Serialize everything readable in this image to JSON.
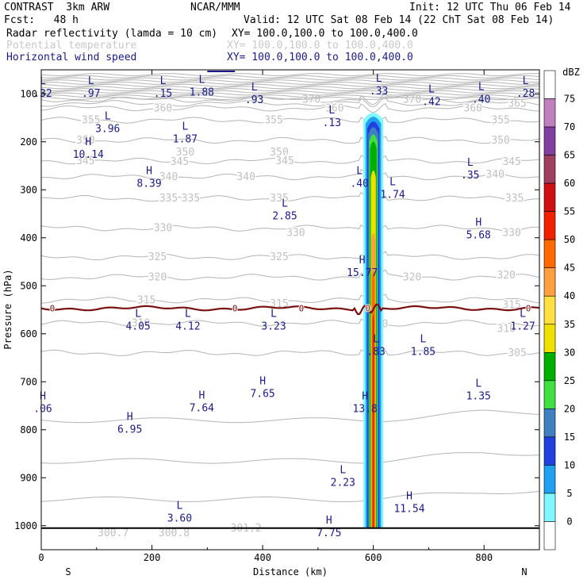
{
  "header": {
    "model": "CONTRAST  3km ARW",
    "org": "NCAR/MMM",
    "init": "Init: 12 UTC Thu 06 Feb 14",
    "fcst": "Fcst:   48 h",
    "valid": "Valid: 12 UTC Sat 08 Feb 14 (22 ChT Sat 08 Feb 14)",
    "fields": [
      {
        "name": "Radar reflectivity (lamda = 10 cm)",
        "xy": "XY= 100.0,100.0 to 100.0,400.0",
        "color": "#000000"
      },
      {
        "name": "Potential temperature",
        "xy": "XY= 100.0,100.0 to 100.0,400.0",
        "color": "#c8c8c8"
      },
      {
        "name": "Horizontal wind speed",
        "xy": "XY= 100.0,100.0 to 100.0,400.0",
        "color": "#1a1a8c"
      }
    ]
  },
  "chart_data": {
    "type": "cross-section",
    "xlabel": "Distance (km)",
    "ylabel": "Pressure (hPa)",
    "xlim": [
      0,
      900
    ],
    "ylim": [
      1050,
      50
    ],
    "x_ticks": [
      "0",
      "200",
      "400",
      "600",
      "800"
    ],
    "x_tick_values": [
      0,
      200,
      400,
      600,
      800
    ],
    "y_ticks": [
      "100",
      "200",
      "300",
      "400",
      "500",
      "600",
      "700",
      "800",
      "900",
      "1000"
    ],
    "y_tick_values": [
      100,
      200,
      300,
      400,
      500,
      600,
      700,
      800,
      900,
      1000
    ],
    "end_labels": {
      "left": "S",
      "right": "N"
    },
    "colorbar": {
      "unit": "dBZ",
      "levels": [
        "75",
        "70",
        "65",
        "60",
        "55",
        "50",
        "45",
        "40",
        "35",
        "30",
        "25",
        "20",
        "15",
        "10",
        "5",
        "0"
      ],
      "colors": [
        "#ffffff",
        "#c080c0",
        "#8040a0",
        "#a04060",
        "#d01010",
        "#f02000",
        "#ff6a00",
        "#ffa040",
        "#ffe040",
        "#f0e000",
        "#00b000",
        "#40e040",
        "#4080c0",
        "#2040e0",
        "#20a0f0",
        "#80f8ff",
        "#ffffff"
      ]
    },
    "theta_contours": [
      {
        "label": "370",
        "p": 112,
        "label_pos": [
          [
            670,
            112
          ],
          [
            488,
            112
          ]
        ]
      },
      {
        "label": "365",
        "p": 120,
        "label_pos": [
          [
            860,
            120
          ]
        ]
      },
      {
        "label": "360",
        "p": 130,
        "label_pos": [
          [
            220,
            130
          ],
          [
            530,
            130
          ],
          [
            780,
            130
          ]
        ]
      },
      {
        "label": "355",
        "p": 155,
        "label_pos": [
          [
            90,
            155
          ],
          [
            420,
            155
          ],
          [
            830,
            155
          ]
        ]
      },
      {
        "label": "350",
        "p": 197,
        "label_pos": [
          [
            80,
            197
          ],
          [
            260,
            222
          ],
          [
            430,
            222
          ],
          [
            830,
            197
          ]
        ]
      },
      {
        "label": "345",
        "p": 240,
        "label_pos": [
          [
            80,
            240
          ],
          [
            250,
            242
          ],
          [
            440,
            240
          ],
          [
            850,
            242
          ]
        ]
      },
      {
        "label": "340",
        "p": 273,
        "label_pos": [
          [
            230,
            273
          ],
          [
            370,
            273
          ],
          [
            820,
            268
          ]
        ]
      },
      {
        "label": "335",
        "p": 318,
        "label_pos": [
          [
            230,
            318
          ],
          [
            270,
            318
          ],
          [
            430,
            318
          ],
          [
            855,
            318
          ]
        ]
      },
      {
        "label": "330",
        "p": 380,
        "label_pos": [
          [
            220,
            380
          ],
          [
            460,
            390
          ],
          [
            850,
            390
          ]
        ]
      },
      {
        "label": "325",
        "p": 440,
        "label_pos": [
          [
            210,
            440
          ],
          [
            430,
            440
          ]
        ]
      },
      {
        "label": "320",
        "p": 482,
        "label_pos": [
          [
            210,
            482
          ],
          [
            670,
            482
          ],
          [
            840,
            478
          ]
        ]
      },
      {
        "label": "315",
        "p": 530,
        "label_pos": [
          [
            190,
            530
          ],
          [
            430,
            538
          ],
          [
            850,
            540
          ]
        ]
      },
      {
        "label": "310",
        "p": 578,
        "label_pos": [
          [
            180,
            578
          ],
          [
            610,
            580
          ],
          [
            840,
            590
          ]
        ]
      },
      {
        "label": "305",
        "p": 640,
        "label_pos": [
          [
            860,
            640
          ]
        ]
      }
    ],
    "theta_surface_labels": [
      {
        "label": "300.7",
        "x": 130,
        "p": 1015
      },
      {
        "label": "300.8",
        "x": 240,
        "p": 1015
      },
      {
        "label": "301.2",
        "x": 370,
        "p": 1005
      }
    ],
    "zero_isotherm": {
      "label": "0",
      "p": 547
    },
    "wind_extrema": [
      {
        "type": "L",
        "value": ".32",
        "x": -2,
        "p": 95
      },
      {
        "type": "L",
        "value": ".97",
        "x": 90,
        "p": 95
      },
      {
        "type": "L",
        "value": ".15",
        "x": 220,
        "p": 95
      },
      {
        "type": "L",
        "value": "1.88",
        "x": 290,
        "p": 92
      },
      {
        "type": "L",
        "value": ".93",
        "x": 385,
        "p": 108
      },
      {
        "type": "L",
        "value": ".33",
        "x": 610,
        "p": 90
      },
      {
        "type": "L",
        "value": ".42",
        "x": 705,
        "p": 112
      },
      {
        "type": "L",
        "value": ".40",
        "x": 795,
        "p": 107
      },
      {
        "type": "L",
        "value": ".28",
        "x": 875,
        "p": 95
      },
      {
        "type": "L",
        "value": "3.96",
        "x": 120,
        "p": 168
      },
      {
        "type": "L",
        "value": "1.87",
        "x": 260,
        "p": 190
      },
      {
        "type": "L",
        "value": ".13",
        "x": 525,
        "p": 156
      },
      {
        "type": "H",
        "value": "10.14",
        "x": 85,
        "p": 222
      },
      {
        "type": "H",
        "value": "8.39",
        "x": 195,
        "p": 282
      },
      {
        "type": "L",
        "value": ".40",
        "x": 575,
        "p": 282
      },
      {
        "type": "L",
        "value": "1.74",
        "x": 635,
        "p": 305
      },
      {
        "type": "L",
        "value": ".35",
        "x": 775,
        "p": 265
      },
      {
        "type": "L",
        "value": "2.85",
        "x": 440,
        "p": 350
      },
      {
        "type": "H",
        "value": "5.68",
        "x": 790,
        "p": 390
      },
      {
        "type": "H",
        "value": "15.77",
        "x": 580,
        "p": 468
      },
      {
        "type": "L",
        "value": "4.05",
        "x": 175,
        "p": 580
      },
      {
        "type": "L",
        "value": "4.12",
        "x": 265,
        "p": 580
      },
      {
        "type": "L",
        "value": "3.23",
        "x": 420,
        "p": 580
      },
      {
        "type": "L",
        "value": "1.27",
        "x": 870,
        "p": 580
      },
      {
        "type": "L",
        "value": ".83",
        "x": 605,
        "p": 633
      },
      {
        "type": "L",
        "value": "1.85",
        "x": 690,
        "p": 633
      },
      {
        "type": "H",
        "value": "7.65",
        "x": 400,
        "p": 720
      },
      {
        "type": "L",
        "value": "1.35",
        "x": 790,
        "p": 725
      },
      {
        "type": "H",
        "value": "7.64",
        "x": 290,
        "p": 750
      },
      {
        "type": "H",
        "value": ".06",
        "x": 0,
        "p": 752
      },
      {
        "type": "H",
        "value": "13.8",
        "x": 585,
        "p": 752
      },
      {
        "type": "H",
        "value": "6.95",
        "x": 160,
        "p": 795
      },
      {
        "type": "L",
        "value": "2.23",
        "x": 545,
        "p": 905
      },
      {
        "type": "H",
        "value": "11.54",
        "x": 665,
        "p": 960
      },
      {
        "type": "L",
        "value": "3.60",
        "x": 250,
        "p": 980
      },
      {
        "type": "H",
        "value": "7.75",
        "x": 520,
        "p": 1010
      }
    ],
    "reflectivity_column": {
      "x_center": 600,
      "p_top": 138,
      "p_bottom": 1005
    }
  }
}
